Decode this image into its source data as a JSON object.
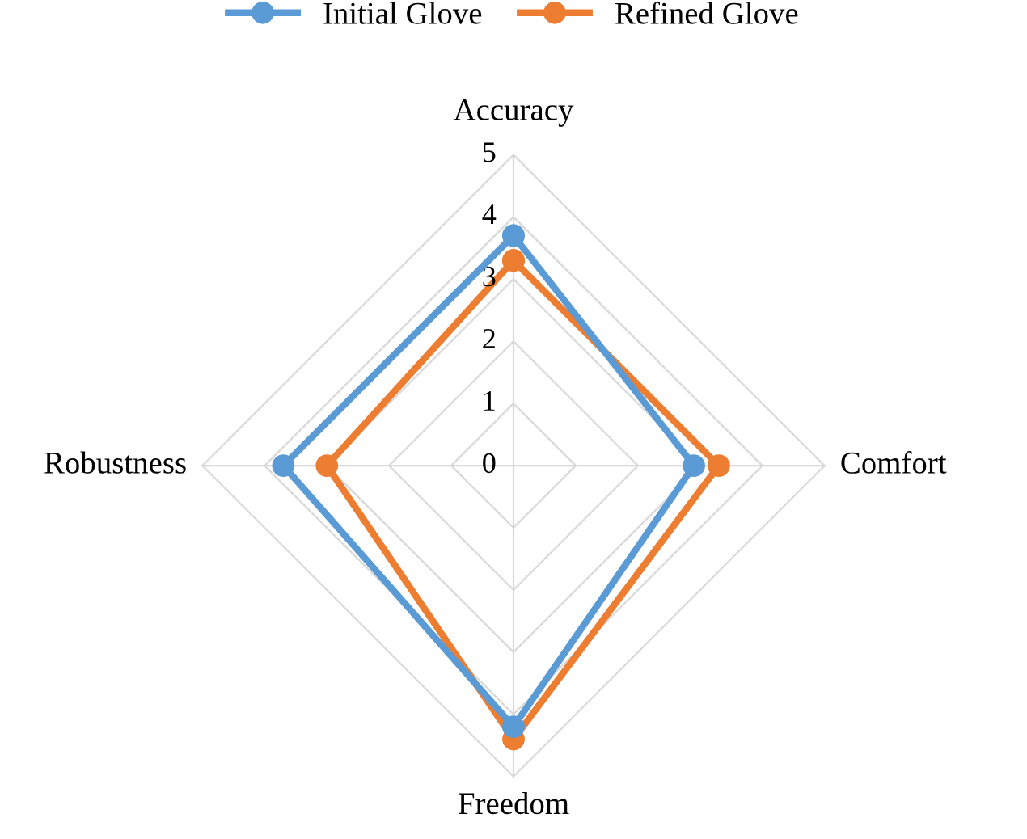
{
  "chart_data": {
    "type": "radar",
    "categories": [
      "Accuracy",
      "Comfort",
      "Freedom",
      "Robustness"
    ],
    "series": [
      {
        "name": "Initial Glove",
        "color": "#5b9bd5",
        "values": [
          3.7,
          2.9,
          4.2,
          3.7
        ]
      },
      {
        "name": "Refined Glove",
        "color": "#ed7d31",
        "values": [
          3.3,
          3.3,
          4.4,
          3.0
        ]
      }
    ],
    "ylim": [
      0,
      5
    ],
    "yticks": [
      0,
      1,
      2,
      3,
      4,
      5
    ],
    "grid": true,
    "legend": "top",
    "marker": "circle",
    "line_style": "solid"
  }
}
